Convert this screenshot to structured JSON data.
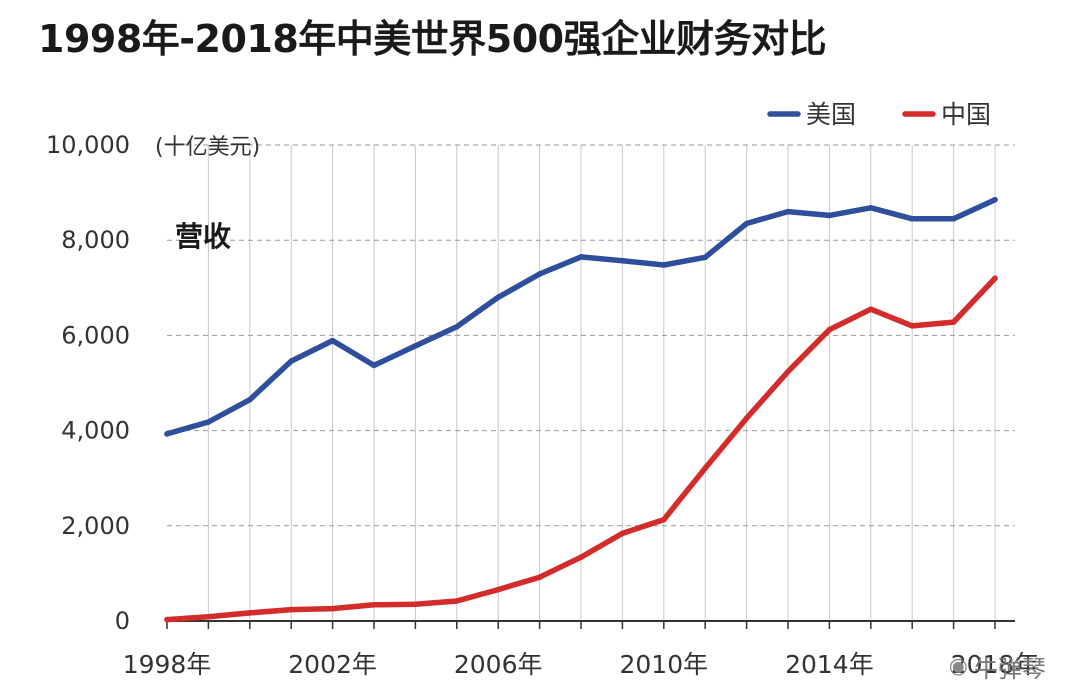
{
  "title": "1998年-2018年中美世界500强企业财务对比",
  "watermark": "牛弹琴",
  "chart_data": {
    "type": "line",
    "title": "1998年-2018年中美世界500强企业财务对比",
    "unit_label": "(十亿美元)",
    "annotation": "营收",
    "x": [
      1998,
      1999,
      2000,
      2001,
      2002,
      2003,
      2004,
      2005,
      2006,
      2007,
      2008,
      2009,
      2010,
      2011,
      2012,
      2013,
      2014,
      2015,
      2016,
      2017,
      2018
    ],
    "x_tick_labels": [
      "1998年",
      "2002年",
      "2006年",
      "2010年",
      "2014年",
      "2018年"
    ],
    "x_tick_values": [
      1998,
      2002,
      2006,
      2010,
      2014,
      2018
    ],
    "y_tick_labels": [
      "0",
      "2,000",
      "4,000",
      "6,000",
      "8,000",
      "10,000"
    ],
    "y_tick_values": [
      0,
      2000,
      4000,
      6000,
      8000,
      10000
    ],
    "ylim": [
      0,
      10000
    ],
    "xlim": [
      1998,
      2018
    ],
    "grid": true,
    "legend_position": "top-right",
    "series": [
      {
        "name": "美国",
        "color": "#2e4f9c",
        "values": [
          3930,
          4180,
          4650,
          5460,
          5890,
          5370,
          5780,
          6180,
          6800,
          7290,
          7650,
          7570,
          7480,
          7640,
          8350,
          8600,
          8520,
          8680,
          8450,
          8450,
          8850
        ]
      },
      {
        "name": "中国",
        "color": "#d42b2b",
        "values": [
          30,
          90,
          170,
          240,
          260,
          340,
          350,
          420,
          660,
          920,
          1340,
          1840,
          2130,
          3210,
          4260,
          5240,
          6120,
          6550,
          6200,
          6280,
          7200
        ]
      }
    ]
  }
}
